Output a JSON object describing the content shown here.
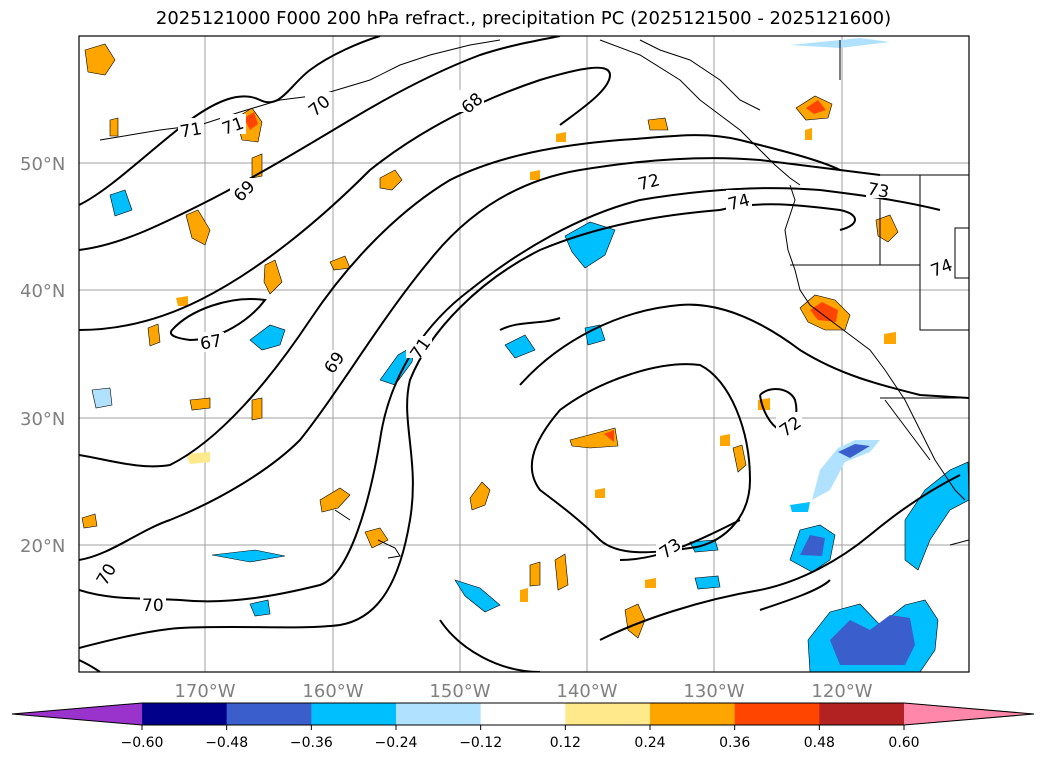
{
  "title": "2025121000 F000 200 hPa refract., precipitation PC (2025121500 - 2025121600)",
  "lat_labels": [
    "50°N",
    "40°N",
    "30°N",
    "20°N"
  ],
  "lon_labels": [
    "170°W",
    "160°W",
    "150°W",
    "140°W",
    "130°W",
    "120°W"
  ],
  "contour_labels": [
    "71",
    "71",
    "70",
    "68",
    "69",
    "67",
    "69",
    "71",
    "72",
    "74",
    "73",
    "74",
    "72",
    "73",
    "70",
    "70"
  ],
  "colorbar": {
    "ticks": [
      "−0.60",
      "−0.48",
      "−0.36",
      "−0.24",
      "−0.12",
      "0.12",
      "0.24",
      "0.36",
      "0.48",
      "0.60"
    ],
    "colors": [
      "#9933cc",
      "#00008b",
      "#3a5fcd",
      "#00bfff",
      "#b0e2ff",
      "#ffffff",
      "#ffe98a",
      "#ffa500",
      "#ff4500",
      "#b22222",
      "#ff88aa"
    ]
  },
  "colors": {
    "neg_light": "#b0e2ff",
    "neg_mid": "#00bfff",
    "neg_dark": "#3a5fcd",
    "pos_light": "#ffe98a",
    "pos_mid": "#ffa500",
    "pos_dark": "#ff4500"
  }
}
